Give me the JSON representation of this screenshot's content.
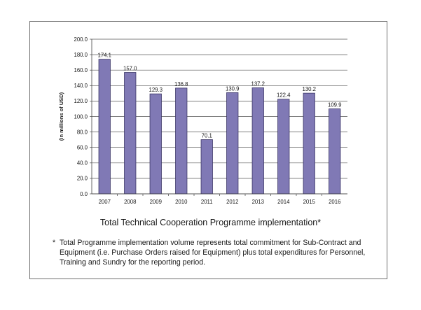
{
  "chart_data": {
    "type": "bar",
    "title": "Total Technical Cooperation Programme implementation*",
    "xlabel": "",
    "ylabel": "(in millions of USD)",
    "categories": [
      "2007",
      "2008",
      "2009",
      "2010",
      "2011",
      "2012",
      "2013",
      "2014",
      "2015",
      "2016"
    ],
    "values": [
      174.1,
      157.0,
      129.3,
      136.8,
      70.1,
      130.9,
      137.2,
      122.4,
      130.2,
      109.9
    ],
    "ylim": [
      0,
      200
    ],
    "yticks": [
      "0.0",
      "20.0",
      "40.0",
      "60.0",
      "80.0",
      "100.0",
      "120.0",
      "140.0",
      "160.0",
      "180.0",
      "200.0"
    ],
    "grid": "horizontal",
    "bar_color": "#8079b5",
    "bar_outline": "#3a3566",
    "value_labels": [
      "174.1",
      "157.0",
      "129.3",
      "136.8",
      "70.1",
      "130.9",
      "137.2",
      "122.4",
      "130.2",
      "109.9"
    ]
  },
  "footnote": {
    "marker": "*",
    "text": "Total Programme implementation volume represents total commitment for Sub-Contract and Equipment (i.e. Purchase Orders raised for Equipment) plus total expenditures for Personnel, Training and Sundry for the reporting period."
  }
}
